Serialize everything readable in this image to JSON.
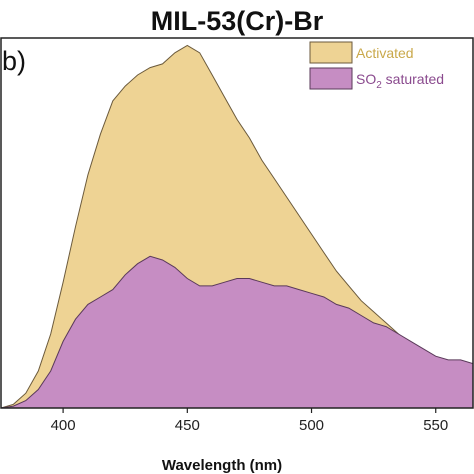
{
  "chart_data": {
    "type": "area",
    "title": "MIL-53(Cr)-Br",
    "panel_label": "b)",
    "xlabel": "Wavelength (nm)",
    "ylabel": "",
    "xlim": [
      375,
      565
    ],
    "ylim": [
      0,
      1.0
    ],
    "xticks": [
      400,
      450,
      500,
      550
    ],
    "xtick_labels": [
      "400",
      "450",
      "500",
      "550"
    ],
    "legend_position": "top-right",
    "grid": false,
    "series": [
      {
        "name": "Activated",
        "color": "#EED394",
        "stroke": "#6B5A3C",
        "x": [
          375,
          380,
          385,
          390,
          395,
          400,
          405,
          410,
          415,
          420,
          425,
          430,
          435,
          440,
          445,
          450,
          455,
          460,
          465,
          470,
          475,
          480,
          485,
          490,
          495,
          500,
          505,
          510,
          515,
          520,
          525,
          530,
          535,
          540,
          545,
          550,
          555,
          560,
          565
        ],
        "y": [
          0.0,
          0.01,
          0.04,
          0.1,
          0.2,
          0.34,
          0.49,
          0.63,
          0.74,
          0.83,
          0.87,
          0.9,
          0.92,
          0.93,
          0.96,
          0.98,
          0.96,
          0.9,
          0.84,
          0.78,
          0.73,
          0.67,
          0.62,
          0.57,
          0.52,
          0.47,
          0.42,
          0.37,
          0.33,
          0.29,
          0.26,
          0.23,
          0.2,
          0.17,
          0.15,
          0.13,
          0.12,
          0.11,
          0.1
        ]
      },
      {
        "name": "SO2 saturated",
        "label_main": "SO",
        "label_sub": "2",
        "label_rest": " saturated",
        "color": "#C68DC3",
        "stroke": "#5A3A5A",
        "x": [
          375,
          380,
          385,
          390,
          395,
          400,
          405,
          410,
          415,
          420,
          425,
          430,
          435,
          440,
          445,
          450,
          455,
          460,
          465,
          470,
          475,
          480,
          485,
          490,
          495,
          500,
          505,
          510,
          515,
          520,
          525,
          530,
          535,
          540,
          545,
          550,
          555,
          560,
          565
        ],
        "y": [
          0.0,
          0.005,
          0.02,
          0.05,
          0.1,
          0.18,
          0.24,
          0.28,
          0.3,
          0.32,
          0.36,
          0.39,
          0.41,
          0.4,
          0.38,
          0.35,
          0.33,
          0.33,
          0.34,
          0.35,
          0.35,
          0.34,
          0.33,
          0.33,
          0.32,
          0.31,
          0.3,
          0.28,
          0.27,
          0.25,
          0.23,
          0.22,
          0.2,
          0.18,
          0.16,
          0.14,
          0.13,
          0.13,
          0.12
        ]
      }
    ]
  }
}
